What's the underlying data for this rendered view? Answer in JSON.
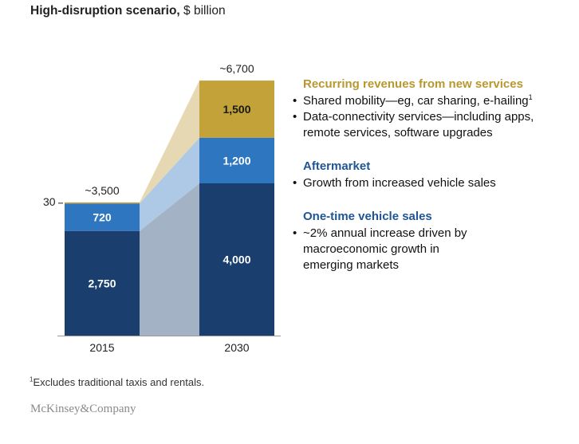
{
  "title": {
    "bold": "High-disruption scenario,",
    "unit": " $ billion"
  },
  "colors": {
    "one_time_sales": "#1a3f6f",
    "aftermarket": "#2e77c0",
    "recurring": "#c3a23a",
    "band_sales": "#a4b2c5",
    "band_aftermarket": "#adc9e6",
    "band_recurring": "#e5d8b2",
    "head_recurring": "#b9972f",
    "head_blue": "#1f5593"
  },
  "chart_data": {
    "type": "bar",
    "stacked": true,
    "categories": [
      "2015",
      "2030"
    ],
    "series": [
      {
        "key": "sales",
        "values": [
          2750,
          4000
        ],
        "labels": [
          "2,750",
          "4,000"
        ]
      },
      {
        "key": "aftermarket",
        "values": [
          720,
          1200
        ],
        "labels": [
          "720",
          "1,200"
        ]
      },
      {
        "key": "recurring",
        "values": [
          30,
          1500
        ],
        "labels": [
          "30",
          "1,500"
        ]
      }
    ],
    "totals": [
      "~3,500",
      "~6,700"
    ]
  },
  "legend": [
    {
      "key": "recurring",
      "heading": "Recurring revenues from new services",
      "items": [
        {
          "text": "Shared mobility—eg, car sharing, e-hailing",
          "sup": "1"
        },
        {
          "text": "Data-connectivity services—including apps,"
        },
        {
          "text": "remote services, software upgrades",
          "continuation": true
        }
      ]
    },
    {
      "key": "aftermarket",
      "heading": "Aftermarket",
      "items": [
        {
          "text": "Growth from increased vehicle sales"
        }
      ]
    },
    {
      "key": "sales",
      "heading": "One-time vehicle sales",
      "items": [
        {
          "text": "~2% annual increase driven by"
        },
        {
          "text": "macroeconomic growth in",
          "continuation": true
        },
        {
          "text": "emerging markets",
          "continuation": true
        }
      ]
    }
  ],
  "footnote": {
    "marker": "1",
    "text": "Excludes traditional taxis and rentals."
  },
  "source": "McKinsey&Company"
}
